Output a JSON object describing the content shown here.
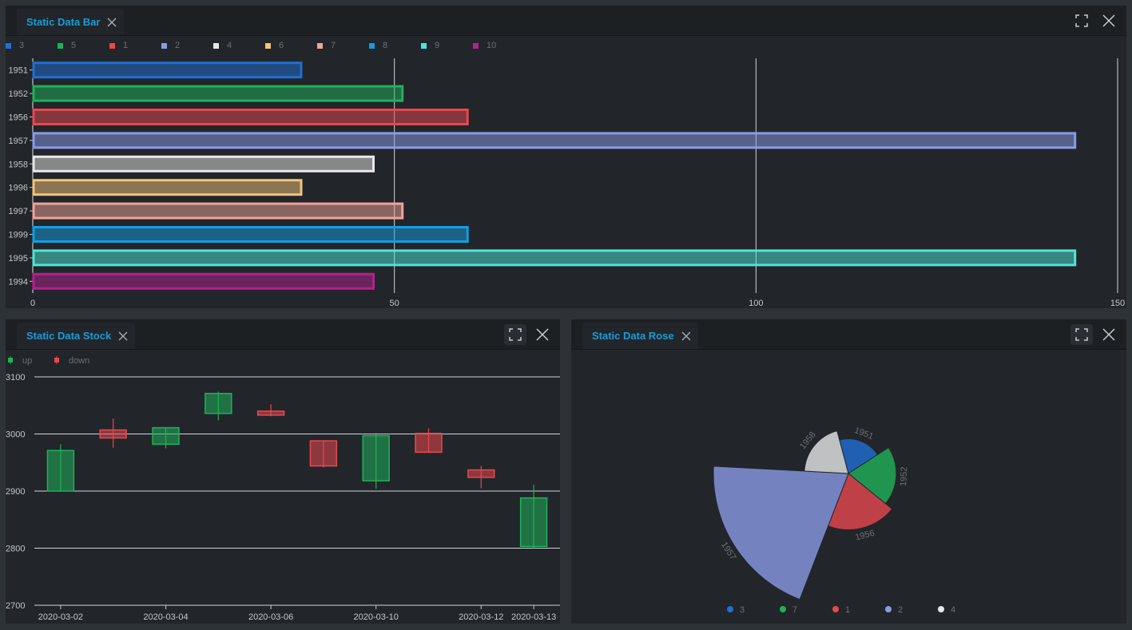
{
  "panels": {
    "bar": {
      "title": "Static Data Bar"
    },
    "stock": {
      "title": "Static Data Stock"
    },
    "rose": {
      "title": "Static Data Rose"
    }
  },
  "chart_data": [
    {
      "type": "bar",
      "orientation": "horizontal",
      "title": "Static Data Bar",
      "categories": [
        "1951",
        "1952",
        "1956",
        "1957",
        "1958",
        "1996",
        "1997",
        "1999",
        "1995",
        "1994"
      ],
      "values": [
        37,
        51,
        60,
        144,
        47,
        37,
        51,
        60,
        144,
        47
      ],
      "legend": [
        "3",
        "5",
        "1",
        "2",
        "4",
        "6",
        "7",
        "8",
        "9",
        "10"
      ],
      "colors": [
        "#1f6fd4",
        "#1fb15a",
        "#e8474f",
        "#8a9be6",
        "#e8e8e8",
        "#f3c47a",
        "#f0a39a",
        "#139de0",
        "#4ee6d8",
        "#b4208e"
      ],
      "xticks": [
        "0",
        "50",
        "100",
        "150"
      ],
      "xlim": [
        0,
        150
      ]
    },
    {
      "type": "candlestick",
      "title": "Static Data Stock",
      "legend": [
        {
          "label": "up",
          "color": "#1fb15a"
        },
        {
          "label": "down",
          "color": "#e8474f"
        }
      ],
      "yticks": [
        "3100",
        "3000",
        "2900",
        "2800",
        "2700"
      ],
      "ylim": [
        2700,
        3100
      ],
      "xticks": [
        "2020-03-02",
        "2020-03-04",
        "2020-03-06",
        "2020-03-10",
        "2020-03-12",
        "2020-03-13"
      ],
      "candles": [
        {
          "open": 2900,
          "close": 2971,
          "low": 2900,
          "high": 2982,
          "dir": "up"
        },
        {
          "open": 3007,
          "close": 2993,
          "low": 2976,
          "high": 3027,
          "dir": "down"
        },
        {
          "open": 2982,
          "close": 3011,
          "low": 2975,
          "high": 3011,
          "dir": "up"
        },
        {
          "open": 3036,
          "close": 3071,
          "low": 3024,
          "high": 3074,
          "dir": "up"
        },
        {
          "open": 3040,
          "close": 3033,
          "low": 3031,
          "high": 3052,
          "dir": "down"
        },
        {
          "open": 2988,
          "close": 2944,
          "low": 2941,
          "high": 2988,
          "dir": "down"
        },
        {
          "open": 2918,
          "close": 2997,
          "low": 2904,
          "high": 2999,
          "dir": "up"
        },
        {
          "open": 3001,
          "close": 2968,
          "low": 2968,
          "high": 3010,
          "dir": "down"
        },
        {
          "open": 2937,
          "close": 2924,
          "low": 2905,
          "high": 2944,
          "dir": "down"
        },
        {
          "open": 2803,
          "close": 2888,
          "low": 2800,
          "high": 2911,
          "dir": "up"
        }
      ]
    },
    {
      "type": "rose",
      "title": "Static Data Rose",
      "slices": [
        {
          "label": "1951",
          "value": 37,
          "color": "#1f6fd4"
        },
        {
          "label": "1952",
          "value": 51,
          "color": "#1fb15a"
        },
        {
          "label": "1956",
          "value": 60,
          "color": "#e8474f"
        },
        {
          "label": "1957",
          "value": 144,
          "color": "#8a9be6"
        },
        {
          "label": "1958",
          "value": 47,
          "color": "#e8e8e8"
        }
      ],
      "legend": [
        {
          "label": "3",
          "color": "#1f6fd4"
        },
        {
          "label": "7",
          "color": "#1fb15a"
        },
        {
          "label": "1",
          "color": "#e8474f"
        },
        {
          "label": "2",
          "color": "#8a9be6"
        },
        {
          "label": "4",
          "color": "#e8e8e8"
        }
      ]
    }
  ]
}
